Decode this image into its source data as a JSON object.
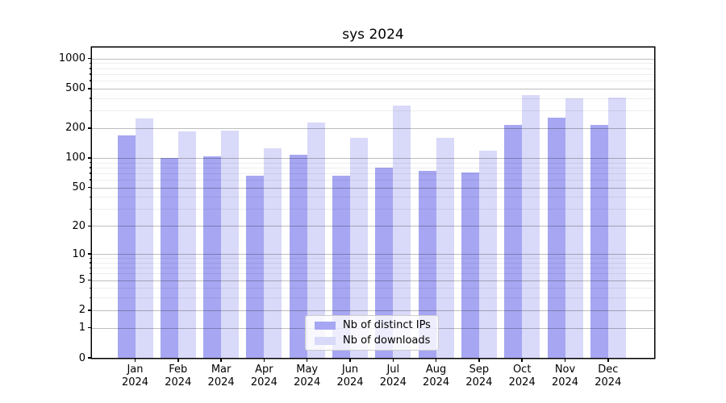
{
  "chart": {
    "title": "sys 2024",
    "legend": {
      "items": [
        {
          "label": "Nb of distinct IPs",
          "color": "#a6a6f2"
        },
        {
          "label": "Nb of downloads",
          "color": "#d9d9f9"
        }
      ]
    }
  },
  "chart_data": {
    "type": "bar",
    "title": "sys 2024",
    "categories": [
      "Jan 2024",
      "Feb 2024",
      "Mar 2024",
      "Apr 2024",
      "May 2024",
      "Jun 2024",
      "Jul 2024",
      "Aug 2024",
      "Sep 2024",
      "Oct 2024",
      "Nov 2024",
      "Dec 2024"
    ],
    "series": [
      {
        "name": "Nb of distinct IPs",
        "color": "#a6a6f2",
        "values": [
          170,
          100,
          103,
          66,
          108,
          66,
          80,
          74,
          71,
          214,
          254,
          215
        ]
      },
      {
        "name": "Nb of downloads",
        "color": "#d9d9f9",
        "values": [
          252,
          185,
          190,
          125,
          228,
          159,
          340,
          160,
          118,
          427,
          399,
          405
        ]
      }
    ],
    "yscale": "log10(1+x)",
    "ylim": [
      0,
      1290
    ],
    "y_ticks": [
      0,
      1,
      2,
      5,
      10,
      20,
      50,
      100,
      200,
      500,
      1000
    ],
    "y_minor_ticks": [
      3,
      4,
      6,
      7,
      8,
      9,
      30,
      40,
      60,
      70,
      80,
      90,
      300,
      400,
      600,
      700,
      800,
      900
    ],
    "grid": true,
    "legend_position": "lower center",
    "xlabel": "",
    "ylabel": ""
  }
}
